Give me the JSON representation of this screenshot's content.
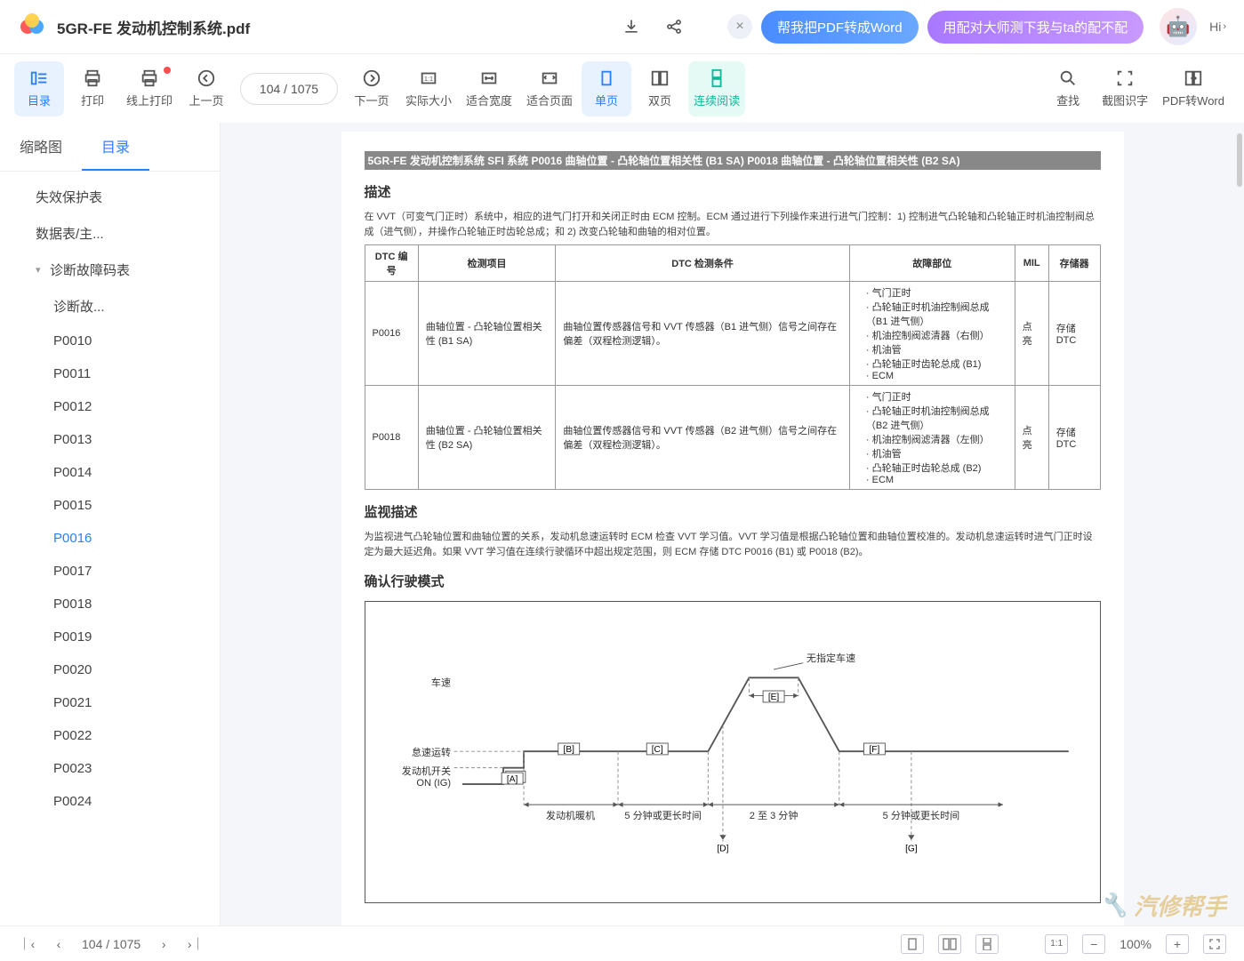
{
  "header": {
    "filename": "5GR-FE 发动机控制系统.pdf",
    "promo1": "帮我把PDF转成Word",
    "promo2": "用配对大师测下我与ta的配不配",
    "hi": "Hi"
  },
  "toolbar": {
    "items": [
      {
        "label": "目录",
        "active": true
      },
      {
        "label": "打印"
      },
      {
        "label": "线上打印",
        "dot": true
      },
      {
        "label": "上一页"
      },
      {
        "label": "下一页"
      },
      {
        "label": "实际大小"
      },
      {
        "label": "适合宽度"
      },
      {
        "label": "适合页面"
      },
      {
        "label": "单页",
        "active": true
      },
      {
        "label": "双页"
      },
      {
        "label": "连续阅读",
        "active_green": true
      },
      {
        "label": "查找"
      },
      {
        "label": "截图识字"
      },
      {
        "label": "PDF转Word"
      }
    ],
    "page_display": "104 / 1075"
  },
  "side": {
    "tab_thumbnail": "缩略图",
    "tab_outline": "目录",
    "outline": [
      {
        "label": "失效保护表",
        "lvl": 1
      },
      {
        "label": "数据表/主...",
        "lvl": 1
      },
      {
        "label": "诊断故障码表",
        "lvl": 1,
        "caret": true
      },
      {
        "label": "诊断故...",
        "lvl": 2
      },
      {
        "label": "P0010",
        "lvl": 2
      },
      {
        "label": "P0011",
        "lvl": 2
      },
      {
        "label": "P0012",
        "lvl": 2
      },
      {
        "label": "P0013",
        "lvl": 2
      },
      {
        "label": "P0014",
        "lvl": 2
      },
      {
        "label": "P0015",
        "lvl": 2
      },
      {
        "label": "P0016",
        "lvl": 2,
        "active": true
      },
      {
        "label": "P0017",
        "lvl": 2
      },
      {
        "label": "P0018",
        "lvl": 2
      },
      {
        "label": "P0019",
        "lvl": 2
      },
      {
        "label": "P0020",
        "lvl": 2
      },
      {
        "label": "P0021",
        "lvl": 2
      },
      {
        "label": "P0022",
        "lvl": 2
      },
      {
        "label": "P0023",
        "lvl": 2
      },
      {
        "label": "P0024",
        "lvl": 2
      }
    ]
  },
  "doc": {
    "header_bar": "5GR-FE 发动机控制系统  SFI 系统  P0016  曲轴位置 - 凸轮轴位置相关性 (B1 SA)  P0018  曲轴位置 - 凸轮轴位置相关性 (B2 SA)",
    "sec_desc": "描述",
    "desc_text": "在 VVT（可变气门正时）系统中，相应的进气门打开和关闭正时由 ECM 控制。ECM 通过进行下列操作来进行进气门控制：1) 控制进气凸轮轴和凸轮轴正时机油控制阀总成（进气侧），并操作凸轮轴正时齿轮总成；和 2) 改变凸轮轴和曲轴的相对位置。",
    "table": {
      "headers": [
        "DTC 编号",
        "检测项目",
        "DTC 检测条件",
        "故障部位",
        "MIL",
        "存储器"
      ],
      "rows": [
        {
          "code": "P0016",
          "item": "曲轴位置 - 凸轮轴位置相关性 (B1 SA)",
          "cond": "曲轴位置传感器信号和 VVT 传感器（B1 进气侧）信号之间存在偏差（双程检测逻辑）。",
          "faults": [
            "气门正时",
            "凸轮轴正时机油控制阀总成（B1 进气侧）",
            "机油控制阀滤清器（右侧）",
            "机油管",
            "凸轮轴正时齿轮总成 (B1)",
            "ECM"
          ],
          "mil": "点亮",
          "mem": "存储 DTC"
        },
        {
          "code": "P0018",
          "item": "曲轴位置 - 凸轮轴位置相关性 (B2 SA)",
          "cond": "曲轴位置传感器信号和 VVT 传感器（B2 进气侧）信号之间存在偏差（双程检测逻辑）。",
          "faults": [
            "气门正时",
            "凸轮轴正时机油控制阀总成（B2 进气侧）",
            "机油控制阀滤清器（左侧）",
            "机油管",
            "凸轮轴正时齿轮总成 (B2)",
            "ECM"
          ],
          "mil": "点亮",
          "mem": "存储 DTC"
        }
      ]
    },
    "sec_monitor": "监视描述",
    "monitor_text": "为监视进气凸轮轴位置和曲轴位置的关系，发动机怠速运转时 ECM 检查 VVT 学习值。VVT 学习值是根据凸轮轴位置和曲轴位置校准的。发动机怠速运转时进气门正时设定为最大延迟角。如果 VVT 学习值在连续行驶循环中超出规定范围，则 ECM 存储 DTC P0016 (B1) 或 P0018 (B2)。",
    "sec_mode": "确认行驶模式",
    "chart": {
      "y_label_top": "车速",
      "no_speed": "无指定车速",
      "idle": "怠速运转",
      "ign": "发动机开关\nON (IG)",
      "warmup": "发动机暖机",
      "dur1": "5 分钟或更长时间",
      "dur2": "2 至 3 分钟",
      "dur3": "5 分钟或更长时间",
      "marks": {
        "A": "[A]",
        "B": "[B]",
        "C": "[C]",
        "D": "[D]",
        "E": "[E]",
        "F": "[F]",
        "G": "[G]"
      },
      "line_color": "#555555",
      "dash_color": "#888888"
    }
  },
  "statusbar": {
    "page": "104 / 1075",
    "zoom": "100%"
  },
  "watermark": "汽修帮手"
}
